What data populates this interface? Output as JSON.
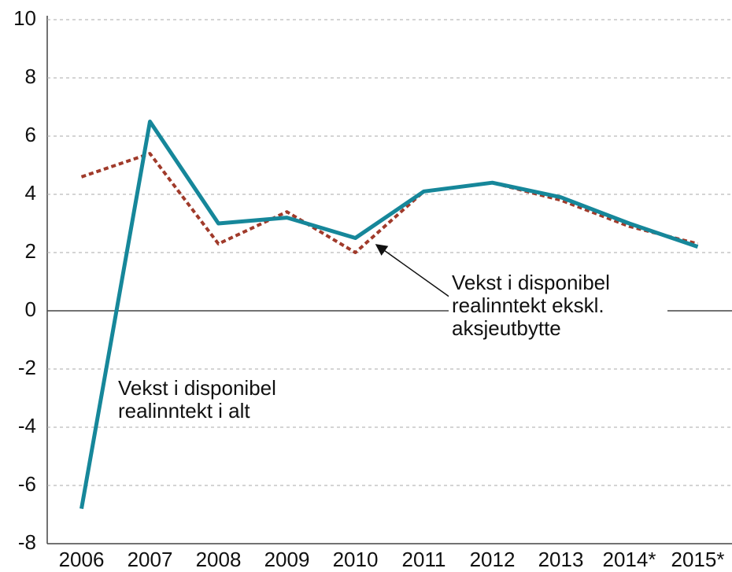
{
  "chart_data": {
    "type": "line",
    "categories": [
      "2006",
      "2007",
      "2008",
      "2009",
      "2010",
      "2011",
      "2012",
      "2013",
      "2014*",
      "2015*"
    ],
    "series": [
      {
        "name": "Vekst i disponibel realinntekt i alt",
        "color": "#16879a",
        "style": "solid",
        "values": [
          -6.8,
          6.5,
          3.0,
          3.2,
          2.5,
          4.1,
          4.4,
          3.9,
          3.0,
          2.2
        ]
      },
      {
        "name": "Vekst i disponibel realinntekt ekskl. aksjeutbytte",
        "color": "#a03a2a",
        "style": "dotted",
        "values": [
          4.6,
          5.4,
          2.3,
          3.4,
          2.0,
          4.1,
          4.4,
          3.8,
          2.9,
          2.3
        ]
      }
    ],
    "ylim": [
      -8,
      10
    ],
    "yticks": [
      -8,
      -6,
      -4,
      -2,
      0,
      2,
      4,
      6,
      8,
      10
    ],
    "grid": true
  }
}
